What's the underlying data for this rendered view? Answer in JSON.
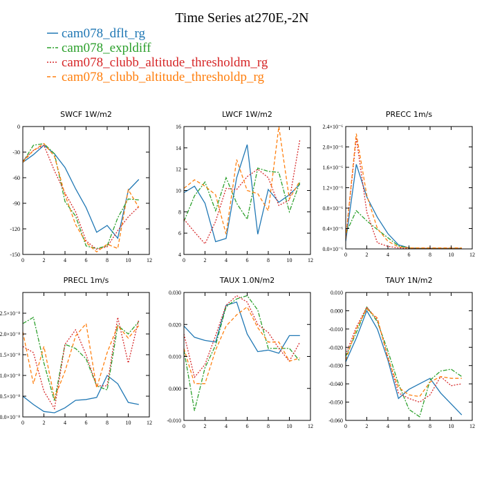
{
  "figure_title": "Time Series at270E,-2N",
  "legend": [
    {
      "name": "cam078_dflt_rg",
      "color": "#1f77b4",
      "dash": ""
    },
    {
      "name": "cam078_expldiff",
      "color": "#2ca02c",
      "dash": "6,2,2,2"
    },
    {
      "name": "cam078_clubb_altitude_thresholdm_rg",
      "color": "#d62728",
      "dash": "2,2"
    },
    {
      "name": "cam078_clubb_altitude_thresholdp_rg",
      "color": "#ff7f0e",
      "dash": "5,3"
    }
  ],
  "chart_data": [
    {
      "type": "line",
      "title": "SWCF   1W/m2",
      "xlim": [
        0,
        12
      ],
      "ylim": [
        -150,
        0
      ],
      "xticks": [
        0,
        2,
        4,
        6,
        8,
        10,
        12
      ],
      "yticks": [
        -150,
        -120,
        -90,
        -60,
        -30,
        0
      ],
      "ytick_labels": [
        "-150",
        "-120",
        "-90",
        "-60",
        "-30",
        "0"
      ],
      "x": [
        0,
        1,
        2,
        3,
        4,
        5,
        6,
        7,
        8,
        9,
        10,
        11
      ],
      "series": [
        {
          "name": "cam078_dflt_rg",
          "values": [
            -42,
            -33,
            -22,
            -32,
            -48,
            -73,
            -95,
            -124,
            -116,
            -131,
            -75,
            -62
          ]
        },
        {
          "name": "cam078_expldiff",
          "values": [
            -42,
            -22,
            -20,
            -32,
            -88,
            -105,
            -140,
            -143,
            -140,
            -107,
            -85,
            -86
          ]
        },
        {
          "name": "cam078_clubb_altitude_thresholdm_rg",
          "values": [
            -40,
            -28,
            -22,
            -52,
            -78,
            -100,
            -134,
            -144,
            -141,
            -122,
            -106,
            -94
          ]
        },
        {
          "name": "cam078_clubb_altitude_thresholdp_rg",
          "values": [
            -42,
            -28,
            -20,
            -35,
            -80,
            -115,
            -136,
            -147,
            -138,
            -143,
            -74,
            -95
          ]
        }
      ]
    },
    {
      "type": "line",
      "title": "LWCF   1W/m2",
      "xlim": [
        0,
        12
      ],
      "ylim": [
        4,
        16
      ],
      "xticks": [
        0,
        2,
        4,
        6,
        8,
        10,
        12
      ],
      "yticks": [
        4,
        6,
        8,
        10,
        12,
        14,
        16
      ],
      "ytick_labels": [
        "4",
        "6",
        "8",
        "10",
        "12",
        "14",
        "16"
      ],
      "x": [
        0,
        1,
        2,
        3,
        4,
        5,
        6,
        7,
        8,
        9,
        10,
        11
      ],
      "series": [
        {
          "name": "cam078_dflt_rg",
          "values": [
            9.8,
            10.4,
            8.8,
            5.2,
            5.5,
            11.2,
            14.3,
            5.9,
            10.1,
            8.9,
            9.6,
            10.6
          ]
        },
        {
          "name": "cam078_expldiff",
          "values": [
            7.1,
            9.5,
            10.8,
            8.1,
            11.2,
            8.8,
            7.3,
            12.1,
            11.8,
            11.7,
            8.0,
            10.8
          ]
        },
        {
          "name": "cam078_clubb_altitude_thresholdm_rg",
          "values": [
            7.3,
            6.1,
            5.0,
            7.1,
            10.2,
            10.1,
            11.3,
            12.0,
            11.2,
            8.6,
            9.1,
            14.8
          ]
        },
        {
          "name": "cam078_clubb_altitude_thresholdp_rg",
          "values": [
            10.2,
            11.0,
            10.4,
            9.6,
            5.9,
            12.9,
            10.0,
            9.7,
            8.1,
            16.0,
            9.2,
            10.9
          ]
        }
      ]
    },
    {
      "type": "line",
      "title": "PRECC   1m/s",
      "xlim": [
        0,
        12
      ],
      "ylim": [
        0,
        2.4
      ],
      "xticks": [
        0,
        2,
        4,
        6,
        8,
        10,
        12
      ],
      "yticks": [
        0,
        0.4,
        0.8,
        1.2,
        1.6,
        2.0,
        2.4
      ],
      "ytick_labels": [
        "0.0×10⁻⁶",
        "0.4×10⁻⁶",
        "0.8×10⁻⁶",
        "1.2×10⁻⁶",
        "1.6×10⁻⁶",
        "2.0×10⁻⁶",
        "2.4×10⁻⁶"
      ],
      "x": [
        0,
        1,
        2,
        3,
        4,
        5,
        6,
        7,
        8,
        9,
        10,
        11
      ],
      "series": [
        {
          "name": "cam078_dflt_rg",
          "values": [
            0.15,
            1.66,
            1.02,
            0.62,
            0.3,
            0.08,
            0.02,
            0.01,
            0.01,
            0.01,
            0.01,
            0.01
          ]
        },
        {
          "name": "cam078_expldiff",
          "values": [
            0.3,
            0.75,
            0.55,
            0.38,
            0.22,
            0.06,
            0.02,
            0.01,
            0.01,
            0.01,
            0.01,
            0.01
          ]
        },
        {
          "name": "cam078_clubb_altitude_thresholdm_rg",
          "values": [
            0.2,
            2.18,
            0.72,
            0.12,
            0.05,
            0.02,
            0.01,
            0.01,
            0.01,
            0.01,
            0.01,
            0.01
          ]
        },
        {
          "name": "cam078_clubb_altitude_thresholdp_rg",
          "values": [
            0.2,
            2.26,
            1.05,
            0.4,
            0.15,
            0.04,
            0.02,
            0.02,
            0.02,
            0.02,
            0.02,
            0.02
          ]
        }
      ]
    },
    {
      "type": "line",
      "title": "PRECL   1m/s",
      "xlim": [
        0,
        12
      ],
      "ylim": [
        0,
        3.0
      ],
      "xticks": [
        0,
        2,
        4,
        6,
        8,
        10,
        12
      ],
      "yticks": [
        0,
        0.5,
        1.0,
        1.5,
        2.0,
        2.5
      ],
      "ytick_labels": [
        "0.0×10⁻⁸",
        "0.5×10⁻⁸",
        "1.0×10⁻⁸",
        "1.5×10⁻⁸",
        "2.0×10⁻⁸",
        "2.5×10⁻⁸"
      ],
      "x": [
        0,
        1,
        2,
        3,
        4,
        5,
        6,
        7,
        8,
        9,
        10,
        11
      ],
      "series": [
        {
          "name": "cam078_dflt_rg",
          "values": [
            0.5,
            0.3,
            0.13,
            0.1,
            0.22,
            0.4,
            0.42,
            0.47,
            1.0,
            0.8,
            0.35,
            0.3
          ]
        },
        {
          "name": "cam078_expldiff",
          "values": [
            2.25,
            2.4,
            1.3,
            0.38,
            1.75,
            1.65,
            1.4,
            0.75,
            0.65,
            2.2,
            2.0,
            2.3
          ]
        },
        {
          "name": "cam078_clubb_altitude_thresholdm_rg",
          "values": [
            1.7,
            1.55,
            0.62,
            0.2,
            1.75,
            2.1,
            1.5,
            0.75,
            0.75,
            2.4,
            1.3,
            2.35
          ]
        },
        {
          "name": "cam078_clubb_altitude_thresholdp_rg",
          "values": [
            2.05,
            0.8,
            1.7,
            0.45,
            1.1,
            1.95,
            2.25,
            0.7,
            1.55,
            2.2,
            1.9,
            2.2
          ]
        }
      ]
    },
    {
      "type": "line",
      "title": "TAUX   1.0N/m2",
      "xlim": [
        0,
        12
      ],
      "ylim": [
        -0.01,
        0.03
      ],
      "xticks": [
        0,
        2,
        4,
        6,
        8,
        10,
        12
      ],
      "yticks": [
        -0.01,
        0.0,
        0.01,
        0.02,
        0.03
      ],
      "ytick_labels": [
        "-0.010",
        "0.000",
        "0.010",
        "0.020",
        "0.030"
      ],
      "x": [
        0,
        1,
        2,
        3,
        4,
        5,
        6,
        7,
        8,
        9,
        10,
        11
      ],
      "series": [
        {
          "name": "cam078_dflt_rg",
          "values": [
            0.0195,
            0.016,
            0.015,
            0.0145,
            0.026,
            0.027,
            0.017,
            0.0115,
            0.012,
            0.011,
            0.0165,
            0.0165
          ]
        },
        {
          "name": "cam078_expldiff",
          "values": [
            0.012,
            -0.007,
            0.0065,
            0.0135,
            0.0255,
            0.028,
            0.029,
            0.0245,
            0.0125,
            0.0125,
            0.0125,
            0.0085
          ]
        },
        {
          "name": "cam078_clubb_altitude_thresholdm_rg",
          "values": [
            0.017,
            0.0035,
            0.0075,
            0.0165,
            0.026,
            0.029,
            0.027,
            0.02,
            0.0175,
            0.0125,
            0.0085,
            0.0145
          ]
        },
        {
          "name": "cam078_clubb_altitude_thresholdp_rg",
          "values": [
            0.0125,
            0.0015,
            0.0015,
            0.012,
            0.0195,
            0.023,
            0.0255,
            0.019,
            0.0145,
            0.0145,
            0.0085,
            0.0095
          ]
        }
      ]
    },
    {
      "type": "line",
      "title": "TAUY   1N/m2",
      "xlim": [
        0,
        12
      ],
      "ylim": [
        -0.06,
        0.01
      ],
      "xticks": [
        0,
        2,
        4,
        6,
        8,
        10,
        12
      ],
      "yticks": [
        -0.06,
        -0.05,
        -0.04,
        -0.03,
        -0.02,
        -0.01,
        0.0,
        0.01
      ],
      "ytick_labels": [
        "-0.060",
        "-0.050",
        "-0.040",
        "-0.030",
        "-0.020",
        "-0.010",
        "0.000",
        "0.010"
      ],
      "x": [
        0,
        1,
        2,
        3,
        4,
        5,
        6,
        7,
        8,
        9,
        10,
        11
      ],
      "series": [
        {
          "name": "cam078_dflt_rg",
          "values": [
            -0.028,
            -0.015,
            0.0,
            -0.01,
            -0.027,
            -0.048,
            -0.043,
            -0.04,
            -0.037,
            -0.045,
            -0.051,
            -0.057
          ]
        },
        {
          "name": "cam078_expldiff",
          "values": [
            -0.025,
            -0.012,
            0.002,
            -0.006,
            -0.022,
            -0.04,
            -0.054,
            -0.058,
            -0.038,
            -0.033,
            -0.032,
            -0.036
          ]
        },
        {
          "name": "cam078_clubb_altitude_thresholdm_rg",
          "values": [
            -0.024,
            -0.009,
            0.002,
            -0.005,
            -0.025,
            -0.045,
            -0.048,
            -0.05,
            -0.046,
            -0.036,
            -0.041,
            -0.04
          ]
        },
        {
          "name": "cam078_clubb_altitude_thresholdp_rg",
          "values": [
            -0.027,
            -0.01,
            0.001,
            -0.004,
            -0.026,
            -0.042,
            -0.046,
            -0.047,
            -0.039,
            -0.036,
            -0.037,
            -0.037
          ]
        }
      ]
    }
  ]
}
